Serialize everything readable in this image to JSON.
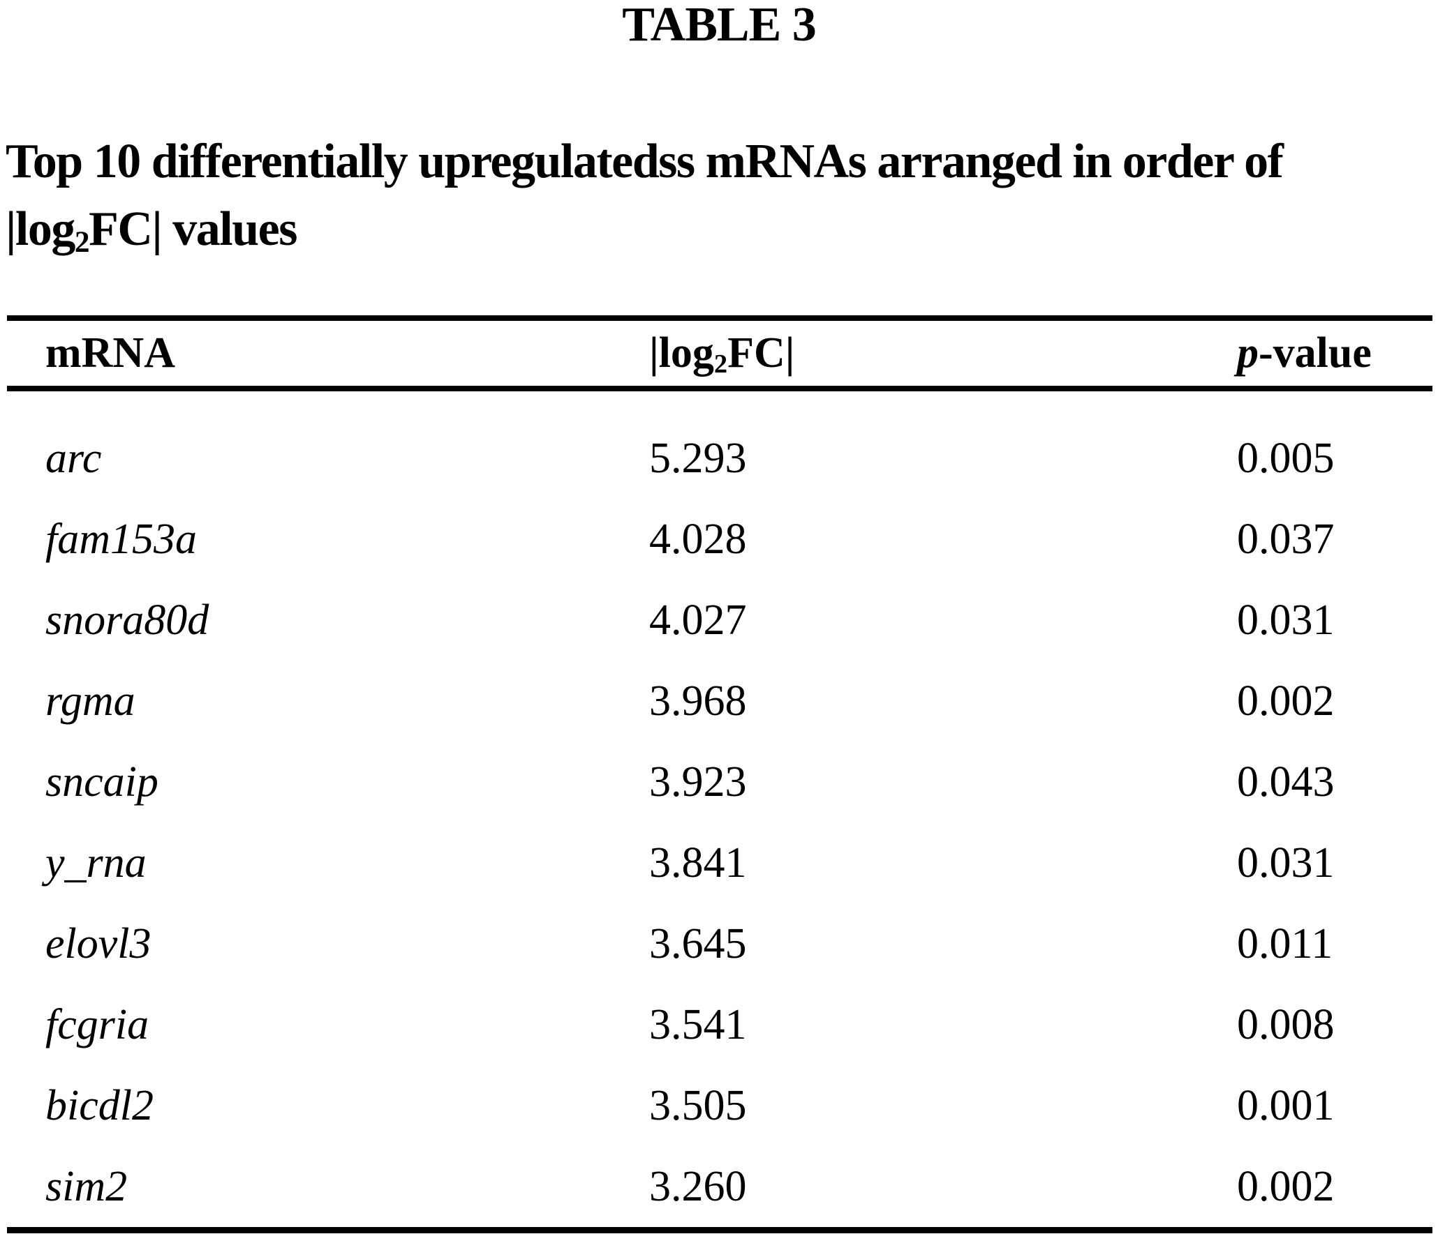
{
  "page": {
    "table_label": "TABLE 3"
  },
  "caption": {
    "line1": "Top 10 differentially upregulatedss mRNAs arranged in order of",
    "line2_prefix": "|log",
    "line2_sub": "2",
    "line2_suffix": "FC| values"
  },
  "table": {
    "headers": {
      "mrna": "mRNA",
      "log2fc_prefix": "|log",
      "log2fc_sub": "2",
      "log2fc_suffix": "FC|",
      "pvalue_italic": "p",
      "pvalue_rest": "-value"
    },
    "rows": [
      {
        "mrna": "arc",
        "log2fc": "5.293",
        "pvalue": "0.005"
      },
      {
        "mrna": "fam153a",
        "log2fc": "4.028",
        "pvalue": "0.037"
      },
      {
        "mrna": "snora80d",
        "log2fc": "4.027",
        "pvalue": "0.031"
      },
      {
        "mrna": "rgma",
        "log2fc": "3.968",
        "pvalue": "0.002"
      },
      {
        "mrna": "sncaip",
        "log2fc": "3.923",
        "pvalue": "0.043"
      },
      {
        "mrna": "y_rna",
        "log2fc": "3.841",
        "pvalue": "0.031"
      },
      {
        "mrna": "elovl3",
        "log2fc": "3.645",
        "pvalue": "0.011"
      },
      {
        "mrna": "fcgria",
        "log2fc": "3.541",
        "pvalue": "0.008"
      },
      {
        "mrna": "bicdl2",
        "log2fc": "3.505",
        "pvalue": "0.001"
      },
      {
        "mrna": "sim2",
        "log2fc": "3.260",
        "pvalue": "0.002"
      }
    ]
  }
}
